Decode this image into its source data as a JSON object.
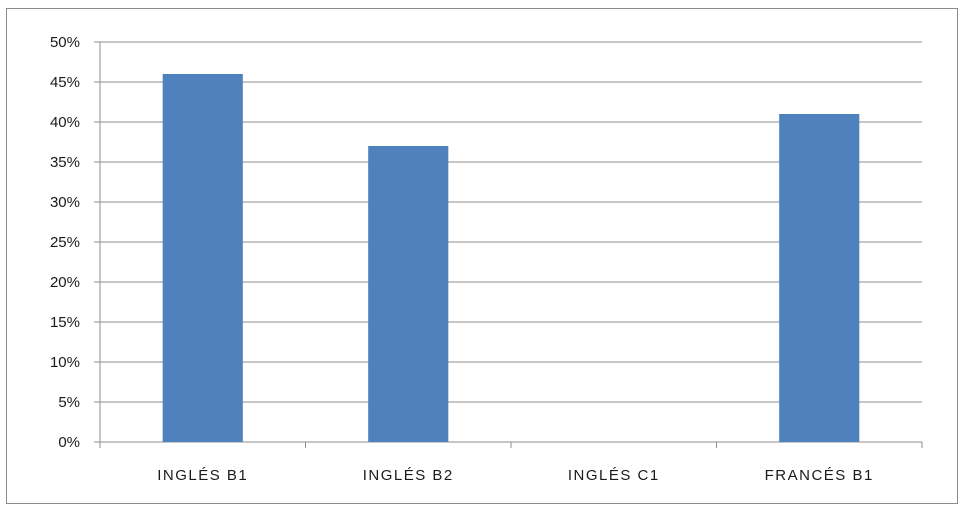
{
  "chart_data": {
    "type": "bar",
    "title": "",
    "xlabel": "",
    "ylabel": "",
    "categories": [
      "INGLÉS B1",
      "INGLÉS B2",
      "INGLÉS C1",
      "FRANCÉS B1"
    ],
    "series": [
      {
        "values": [
          46,
          37,
          0,
          41
        ]
      }
    ],
    "ylim": [
      0,
      50
    ],
    "yticks": [
      0,
      5,
      10,
      15,
      20,
      25,
      30,
      35,
      40,
      45,
      50
    ],
    "y_tick_labels": [
      "0%",
      "5%",
      "10%",
      "15%",
      "20%",
      "25%",
      "30%",
      "35%",
      "40%",
      "45%",
      "50%"
    ],
    "grid": true,
    "legend": "none",
    "colors": {
      "bar": "#4f81bd",
      "grid": "#8c8c8c",
      "axis": "#8c8c8c"
    }
  }
}
